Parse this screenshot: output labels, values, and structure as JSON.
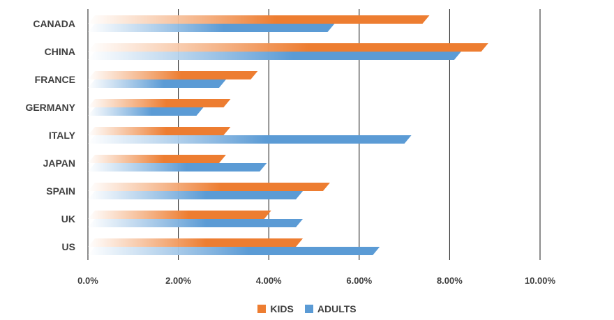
{
  "chart_data": {
    "type": "bar",
    "orientation": "horizontal",
    "categories": [
      "CANADA",
      "CHINA",
      "FRANCE",
      "GERMANY",
      "ITALY",
      "JAPAN",
      "SPAIN",
      "UK",
      "US"
    ],
    "series": [
      {
        "name": "KIDS",
        "color": "#ed7d31",
        "values": [
          7.4,
          8.7,
          3.6,
          3.0,
          3.0,
          2.9,
          5.2,
          3.9,
          4.6
        ]
      },
      {
        "name": "ADULTS",
        "color": "#5b9bd5",
        "values": [
          5.3,
          8.1,
          2.9,
          2.4,
          7.0,
          3.8,
          4.6,
          4.6,
          6.3
        ]
      }
    ],
    "x_ticks": [
      "0.0%",
      "2.00%",
      "4.00%",
      "6.00%",
      "8.00%",
      "10.00%"
    ],
    "xlim": [
      0,
      10
    ],
    "grid": "vertical",
    "legend": "bottom-center"
  }
}
